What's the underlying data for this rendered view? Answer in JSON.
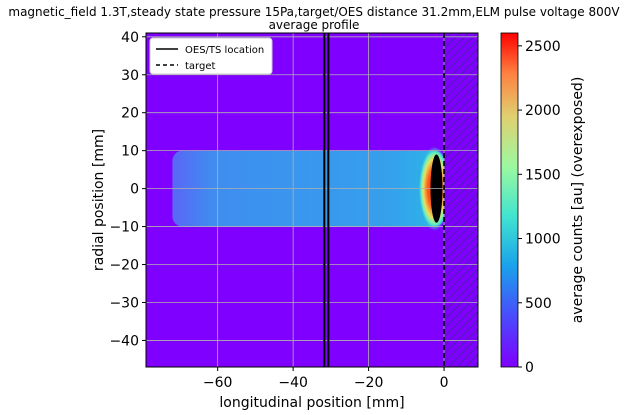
{
  "chart_data": {
    "type": "heatmap",
    "title": "magnetic_field 1.3T,steady state pressure 15Pa,target/OES distance 31.2mm,ELM pulse voltage 800V",
    "subtitle": "average profile",
    "xlabel": "longitudinal position [mm]",
    "ylabel": "radial position [mm]",
    "xlim": [
      -79,
      9
    ],
    "ylim": [
      -47,
      41
    ],
    "xticks": [
      -60,
      -40,
      -20,
      0
    ],
    "yticks": [
      -40,
      -30,
      -20,
      -10,
      0,
      10,
      20,
      30,
      40
    ],
    "grid": true,
    "colorbar": {
      "label": "average counts [au] (overexposed)",
      "range": [
        0,
        2600
      ],
      "ticks": [
        0,
        500,
        1000,
        1500,
        2000,
        2500
      ],
      "colormap": "rainbow"
    },
    "legend": {
      "location": "top-left",
      "entries": [
        {
          "label": "OES/TS location",
          "style": "solid",
          "x": -31.2
        },
        {
          "label": "target",
          "style": "dashed",
          "x": 0
        }
      ]
    },
    "features": {
      "plasma_band": {
        "x_range": [
          -72,
          0
        ],
        "y_range": [
          -10,
          10
        ],
        "level_approx": 350
      },
      "hot_spot": {
        "x_center": -2,
        "y_range": [
          -9,
          9
        ],
        "level": "overexposed"
      },
      "target_hatched_region": {
        "x_range": [
          0,
          9
        ]
      }
    },
    "colors": {
      "background_low": "#7f00ff",
      "band": "#3a8cf0",
      "overexposed": "#000000"
    }
  }
}
